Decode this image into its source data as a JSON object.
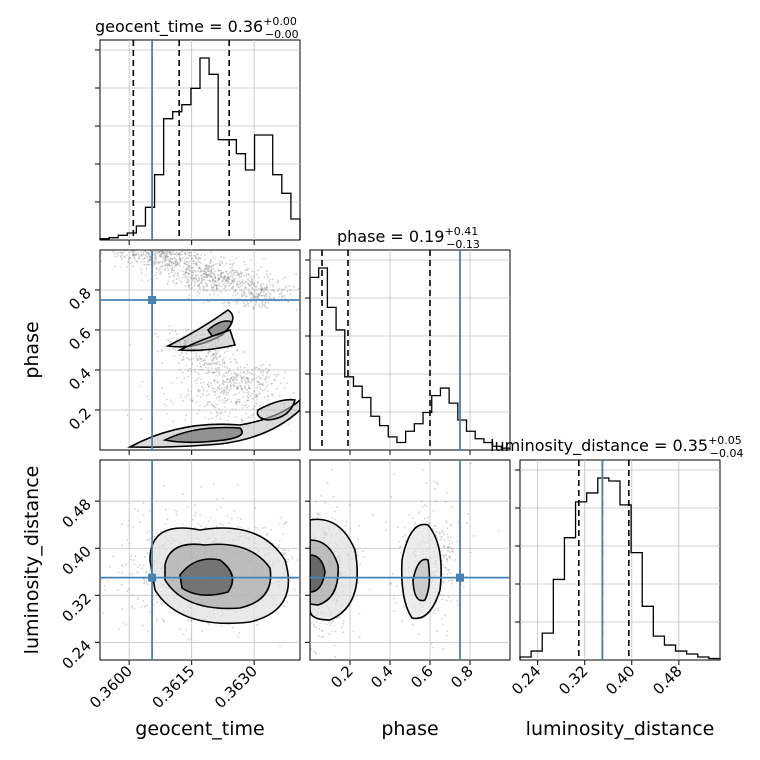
{
  "chart_data": {
    "type": "corner",
    "parameters": [
      "geocent_time",
      "phase",
      "luminosity_distance"
    ],
    "colors": {
      "truth": "#4682b4",
      "hist": "#000000",
      "grid": "#c0c0c0",
      "scatter": "#7f7f7f"
    },
    "truths": {
      "geocent_time": 0.36055,
      "phase": 0.75,
      "luminosity_distance": 0.35
    },
    "titles": [
      {
        "name": "geocent_time",
        "text": "geocent_time = 0.36",
        "sup": "+0.00",
        "sub": "−0.00"
      },
      {
        "name": "phase",
        "text": "phase = 0.19",
        "sup": "+0.41",
        "sub": "−0.13"
      },
      {
        "name": "luminosity_distance",
        "text": "luminosity_distance = 0.35",
        "sup": "+0.05",
        "sub": "−0.04"
      }
    ],
    "axis_labels": {
      "x": [
        "geocent_time",
        "phase",
        "luminosity_distance"
      ],
      "y": [
        "phase",
        "luminosity_distance"
      ]
    },
    "ticks": {
      "geocent_time": {
        "values": [
          0.36,
          0.3615,
          0.363
        ],
        "labels": [
          "0.3600",
          "0.3615",
          "0.3630"
        ]
      },
      "phase": {
        "values": [
          0.2,
          0.4,
          0.6,
          0.8
        ],
        "labels": [
          "0.2",
          "0.4",
          "0.6",
          "0.8"
        ]
      },
      "luminosity_distance": {
        "values": [
          0.24,
          0.32,
          0.4,
          0.48
        ],
        "labels": [
          "0.24",
          "0.32",
          "0.40",
          "0.48"
        ]
      }
    },
    "ranges": {
      "geocent_time": [
        0.3593,
        0.3641
      ],
      "phase": [
        0.0,
        1.0
      ],
      "luminosity_distance": [
        0.21,
        0.55
      ]
    },
    "quantiles": {
      "geocent_time": [
        0.3601,
        0.3612,
        0.3624
      ],
      "phase": [
        0.06,
        0.19,
        0.6
      ],
      "luminosity_distance": [
        0.31,
        0.35,
        0.395
      ]
    },
    "histograms": {
      "geocent_time": [
        0.5,
        1,
        2,
        3,
        6,
        14,
        28,
        52,
        55,
        58,
        65,
        78,
        71,
        43,
        43,
        37,
        30,
        45,
        45,
        28,
        20,
        9
      ],
      "phase": [
        92,
        97,
        76,
        64,
        39,
        34,
        28,
        18,
        13,
        7,
        4,
        10,
        14,
        20,
        29,
        33,
        25,
        16,
        10,
        6,
        4,
        2,
        1
      ],
      "luminosity_distance": [
        1,
        3,
        9,
        27,
        41,
        53,
        56,
        61,
        60,
        52,
        36,
        18,
        8,
        5,
        3,
        2,
        1,
        0.5
      ]
    },
    "grid": true
  }
}
